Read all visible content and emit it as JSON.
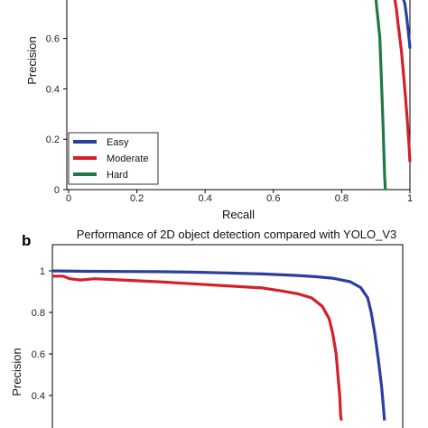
{
  "chart_data": [
    {
      "type": "line",
      "panel_label": "",
      "title": "",
      "xlabel": "Recall",
      "ylabel": "Precision",
      "xlim": [
        0,
        1
      ],
      "ylim": [
        0,
        0.76
      ],
      "x_ticks": [
        {
          "value": 0,
          "label": "0"
        },
        {
          "value": 0.2,
          "label": "0.2"
        },
        {
          "value": 0.4,
          "label": "0.4"
        },
        {
          "value": 0.6,
          "label": "0.6"
        },
        {
          "value": 0.8,
          "label": "0.8"
        },
        {
          "value": 1,
          "label": "1"
        }
      ],
      "y_ticks": [
        {
          "value": 0,
          "label": "0"
        },
        {
          "value": 0.2,
          "label": "0.2"
        },
        {
          "value": 0.4,
          "label": "0.4"
        },
        {
          "value": 0.6,
          "label": "0.6"
        }
      ],
      "legend": {
        "placement": "lower-left"
      },
      "series": [
        {
          "name": "Easy",
          "color": "#2b3fa0",
          "points": [
            [
              0.98,
              0.76
            ],
            [
              0.985,
              0.74
            ],
            [
              0.99,
              0.69
            ],
            [
              0.995,
              0.63
            ],
            [
              0.999,
              0.58
            ],
            [
              1.0,
              0.56
            ]
          ]
        },
        {
          "name": "Moderate",
          "color": "#d4202a",
          "points": [
            [
              0.955,
              0.76
            ],
            [
              0.96,
              0.72
            ],
            [
              0.965,
              0.66
            ],
            [
              0.975,
              0.55
            ],
            [
              0.985,
              0.4
            ],
            [
              0.992,
              0.28
            ],
            [
              0.997,
              0.18
            ],
            [
              1.0,
              0.11
            ]
          ]
        },
        {
          "name": "Hard",
          "color": "#1d7a46",
          "points": [
            [
              0.9,
              0.76
            ],
            [
              0.903,
              0.72
            ],
            [
              0.907,
              0.67
            ],
            [
              0.912,
              0.6
            ],
            [
              0.92,
              0.3
            ],
            [
              0.926,
              0.05
            ],
            [
              0.928,
              0.0
            ]
          ]
        }
      ]
    },
    {
      "type": "line",
      "panel_label": "b",
      "title": "Performance of 2D object detection compared with YOLO_V3",
      "xlabel": "",
      "ylabel": "Precision",
      "xlim": [
        0,
        1
      ],
      "ylim": [
        0.3,
        1.0
      ],
      "x_ticks": [],
      "y_ticks": [
        {
          "value": 1,
          "label": "1"
        },
        {
          "value": 0.8,
          "label": "0.8"
        },
        {
          "value": 0.6,
          "label": "0.6"
        },
        {
          "value": 0.4,
          "label": "0.4"
        }
      ],
      "legend": {
        "placement": "none"
      },
      "series": [
        {
          "name": "",
          "color": "#2b3fa0",
          "points": [
            [
              0,
              1.0
            ],
            [
              0.1,
              0.998
            ],
            [
              0.2,
              0.997
            ],
            [
              0.3,
              0.996
            ],
            [
              0.4,
              0.994
            ],
            [
              0.5,
              0.99
            ],
            [
              0.6,
              0.985
            ],
            [
              0.7,
              0.978
            ],
            [
              0.75,
              0.972
            ],
            [
              0.8,
              0.965
            ],
            [
              0.85,
              0.948
            ],
            [
              0.88,
              0.92
            ],
            [
              0.9,
              0.87
            ],
            [
              0.91,
              0.8
            ],
            [
              0.92,
              0.7
            ],
            [
              0.93,
              0.58
            ],
            [
              0.94,
              0.44
            ],
            [
              0.945,
              0.34
            ],
            [
              0.948,
              0.28
            ]
          ]
        },
        {
          "name": "",
          "color": "#d4202a",
          "points": [
            [
              0,
              0.975
            ],
            [
              0.03,
              0.975
            ],
            [
              0.05,
              0.962
            ],
            [
              0.08,
              0.956
            ],
            [
              0.12,
              0.962
            ],
            [
              0.2,
              0.956
            ],
            [
              0.3,
              0.948
            ],
            [
              0.4,
              0.938
            ],
            [
              0.5,
              0.928
            ],
            [
              0.6,
              0.918
            ],
            [
              0.65,
              0.905
            ],
            [
              0.7,
              0.89
            ],
            [
              0.74,
              0.87
            ],
            [
              0.77,
              0.83
            ],
            [
              0.79,
              0.77
            ],
            [
              0.8,
              0.7
            ],
            [
              0.81,
              0.6
            ],
            [
              0.815,
              0.5
            ],
            [
              0.82,
              0.4
            ],
            [
              0.823,
              0.3
            ],
            [
              0.825,
              0.28
            ]
          ]
        }
      ]
    }
  ]
}
